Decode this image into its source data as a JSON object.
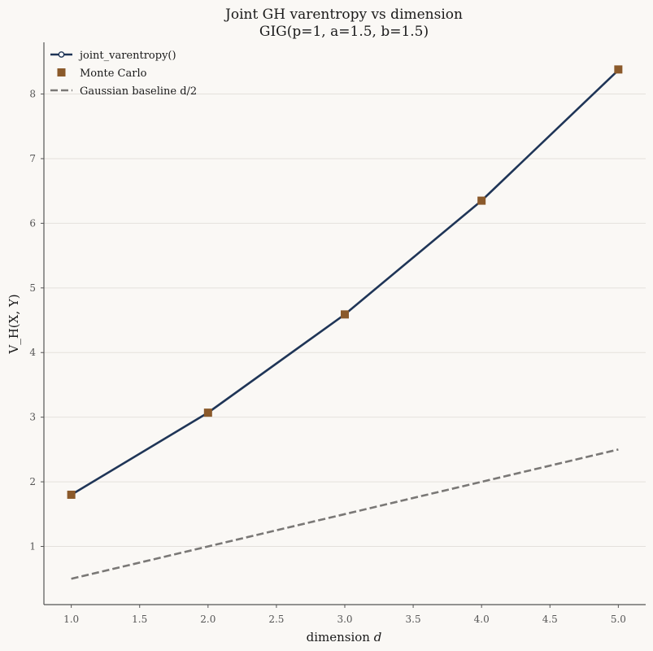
{
  "chart_data": {
    "type": "line",
    "title": "Joint GH varentropy vs dimension",
    "subtitle": "GIG(p=1, a=1.5, b=1.5)",
    "xlabel": "dimension d",
    "ylabel": "V_H(X, Y)",
    "xlim": [
      0.8,
      5.2
    ],
    "ylim": [
      0.1,
      8.8
    ],
    "xticks": [
      1.0,
      1.5,
      2.0,
      2.5,
      3.0,
      3.5,
      4.0,
      4.5,
      5.0
    ],
    "xtick_labels": [
      "1.0",
      "1.5",
      "2.0",
      "2.5",
      "3.0",
      "3.5",
      "4.0",
      "4.5",
      "5.0"
    ],
    "yticks": [
      1,
      2,
      3,
      4,
      5,
      6,
      7,
      8
    ],
    "ytick_labels": [
      "1",
      "2",
      "3",
      "4",
      "5",
      "6",
      "7",
      "8"
    ],
    "grid": "horizontal",
    "legend_position": "top-left",
    "x": [
      1,
      2,
      3,
      4,
      5
    ],
    "series": [
      {
        "name": "joint_varentropy()",
        "kind": "line-with-markers",
        "color": "#1f3557",
        "values": [
          1.8,
          3.07,
          4.59,
          6.35,
          8.37
        ]
      },
      {
        "name": "Monte Carlo",
        "kind": "scatter",
        "color": "#8b5a2b",
        "values": [
          1.8,
          3.07,
          4.59,
          6.35,
          8.38
        ]
      },
      {
        "name": "Gaussian baseline d/2",
        "kind": "dashed-line",
        "color": "#7a7876",
        "values": [
          0.5,
          1.0,
          1.5,
          2.0,
          2.5
        ]
      }
    ]
  }
}
